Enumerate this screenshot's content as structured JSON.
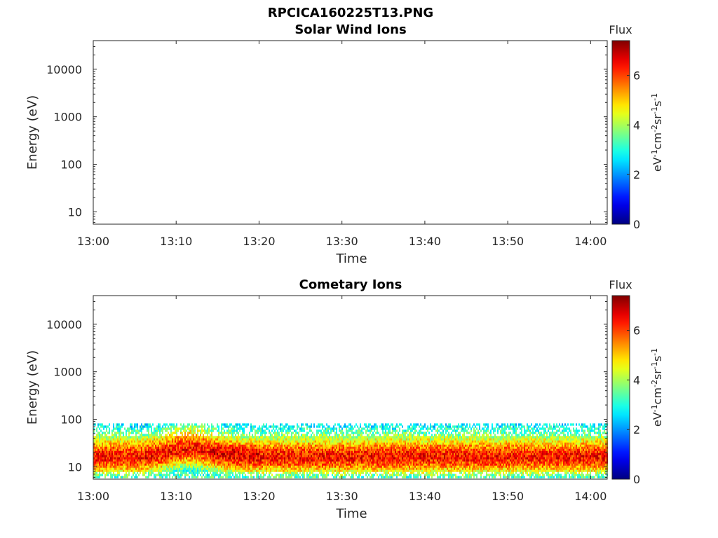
{
  "figure": {
    "title": "RPCICA160225T13.PNG"
  },
  "chart_data": [
    {
      "type": "heatmap",
      "title": "Solar Wind Ions",
      "xlabel": "Time",
      "ylabel": "Energy (eV)",
      "x_ticks": [
        "13:00",
        "13:10",
        "13:20",
        "13:30",
        "13:40",
        "13:50",
        "14:00"
      ],
      "y_ticks": [
        "10",
        "100",
        "1000",
        "10000"
      ],
      "y_scale": "log",
      "xlim": [
        "13:00",
        "14:02"
      ],
      "ylim": [
        5.5,
        40000
      ],
      "colorbar": {
        "title": "Flux",
        "label": "eV-1cm-2sr-1s-1",
        "ticks": [
          0,
          2,
          4,
          6
        ],
        "range": [
          0,
          7.4
        ],
        "colormap": "jet"
      },
      "data": "empty"
    },
    {
      "type": "heatmap",
      "title": "Cometary Ions",
      "xlabel": "Time",
      "ylabel": "Energy (eV)",
      "x_ticks": [
        "13:00",
        "13:10",
        "13:20",
        "13:30",
        "13:40",
        "13:50",
        "14:00"
      ],
      "y_ticks": [
        "10",
        "100",
        "1000",
        "10000"
      ],
      "y_scale": "log",
      "xlim": [
        "13:00",
        "14:02"
      ],
      "ylim": [
        5.5,
        40000
      ],
      "colorbar": {
        "title": "Flux",
        "label": "eV-1cm-2sr-1s-1",
        "ticks": [
          0,
          2,
          4,
          6
        ],
        "range": [
          0,
          7.4
        ],
        "colormap": "jet"
      },
      "energy_profile": {
        "energy_eV": [
          6,
          8,
          11,
          15,
          20,
          28,
          38,
          52,
          70,
          80
        ],
        "flux": [
          3.2,
          4.5,
          5.7,
          6.4,
          6.2,
          5.3,
          4.4,
          3.4,
          2.8,
          2.5
        ]
      }
    }
  ]
}
